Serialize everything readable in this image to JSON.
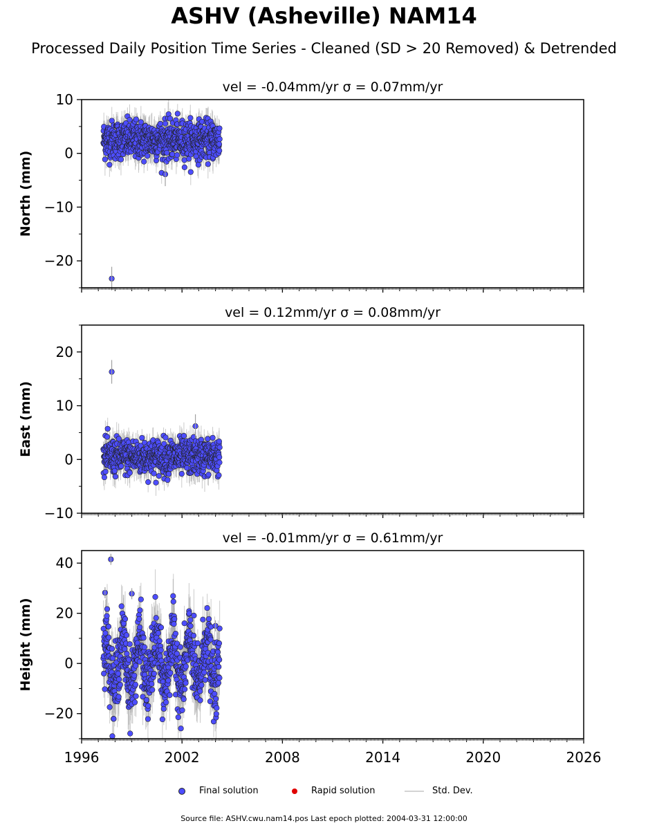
{
  "title": "ASHV (Asheville) NAM14",
  "subtitle": "Processed Daily Position Time Series - Cleaned (SD > 20 Removed) & Detrended",
  "footer": "Source file: ASHV.cwu.nam14.pos  Last epoch plotted: 2004-03-31 12:00:00",
  "legend": {
    "final": "Final solution",
    "rapid": "Rapid solution",
    "std": "Std. Dev."
  },
  "colors": {
    "final_fill": "#4d4dff",
    "final_edge": "#222222",
    "rapid": "#e00000",
    "stddev": "#a0a0a0"
  },
  "chart_data": [
    {
      "type": "scatter",
      "panel": "north",
      "title": "vel = -0.04mm/yr   σ = 0.07mm/yr",
      "ylabel": "North (mm)",
      "xlim": [
        1996,
        2026
      ],
      "ylim": [
        -25,
        10
      ],
      "yticks": [
        10,
        0,
        -10,
        -20
      ],
      "ytick_labels": [
        "10",
        "0",
        "−10",
        "−20"
      ],
      "data_range": {
        "x": [
          1997.3,
          2004.25
        ],
        "band_center": 2.5,
        "band_spread": 3.2
      },
      "outliers": [
        {
          "x": 1997.8,
          "y": -23.3
        },
        {
          "x": 2001.0,
          "y": -3.9
        }
      ]
    },
    {
      "type": "scatter",
      "panel": "east",
      "title": "vel = 0.12mm/yr   σ = 0.08mm/yr",
      "ylabel": "East (mm)",
      "xlim": [
        1996,
        2026
      ],
      "ylim": [
        -10,
        25
      ],
      "yticks": [
        20,
        10,
        0,
        -10
      ],
      "ytick_labels": [
        "20",
        "10",
        "0",
        "−10"
      ],
      "data_range": {
        "x": [
          1997.3,
          2004.25
        ],
        "band_center": 0.5,
        "band_spread": 3.0
      },
      "outliers": [
        {
          "x": 1997.8,
          "y": 16.3
        },
        {
          "x": 2002.8,
          "y": 6.2
        }
      ]
    },
    {
      "type": "scatter",
      "panel": "height",
      "title": "vel = -0.01mm/yr   σ = 0.61mm/yr",
      "ylabel": "Height (mm)",
      "xlim": [
        1996,
        2026
      ],
      "ylim": [
        -30,
        45
      ],
      "yticks": [
        40,
        20,
        0,
        -20
      ],
      "ytick_labels": [
        "40",
        "20",
        "0",
        "−20"
      ],
      "data_range": {
        "x": [
          1997.3,
          2004.25
        ],
        "band_center": 0,
        "band_spread": 12
      },
      "outliers": [
        {
          "x": 1997.75,
          "y": 41.5
        },
        {
          "x": 1997.4,
          "y": 28.2
        },
        {
          "x": 1999.0,
          "y": 27.8
        },
        {
          "x": 2004.0,
          "y": 15.0
        }
      ]
    }
  ],
  "xticks": [
    1996,
    2002,
    2008,
    2014,
    2020,
    2026
  ],
  "xtick_labels": [
    "1996",
    "2002",
    "2008",
    "2014",
    "2020",
    "2026"
  ]
}
